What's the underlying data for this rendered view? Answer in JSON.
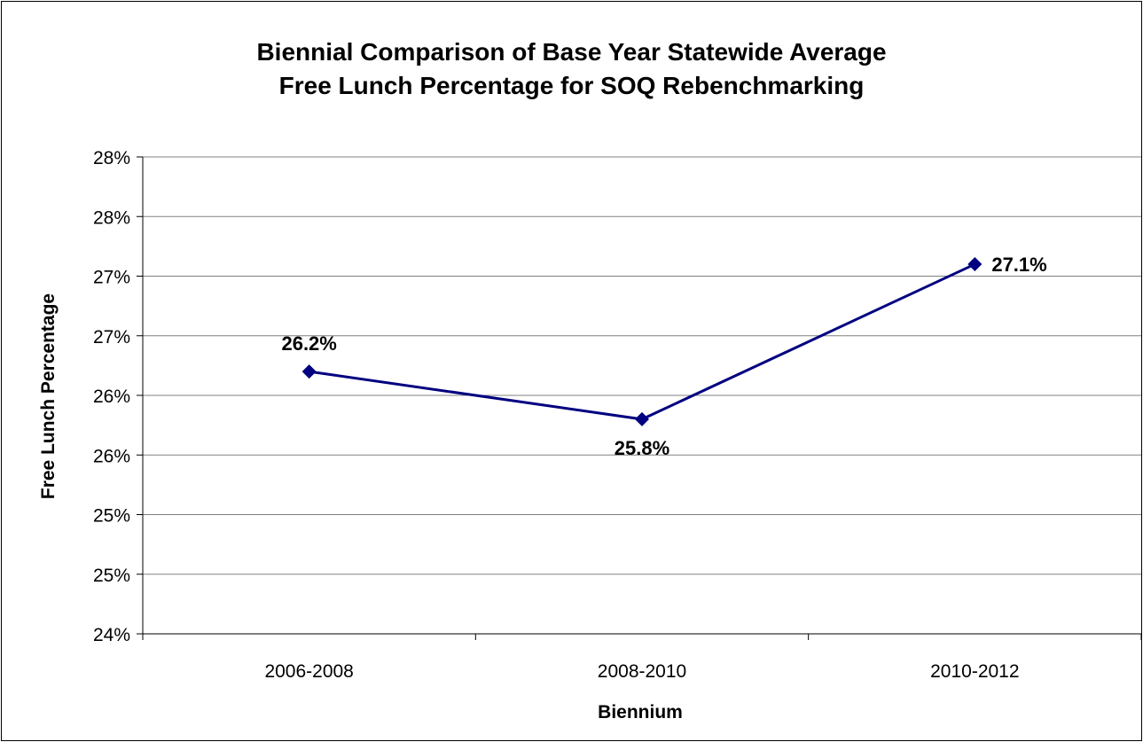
{
  "chart_data": {
    "type": "line",
    "title": [
      "Biennial Comparison of Base Year Statewide Average",
      "Free Lunch Percentage for SOQ Rebenchmarking"
    ],
    "xlabel": "Biennium",
    "ylabel": "Free Lunch Percentage",
    "categories": [
      "2006-2008",
      "2008-2010",
      "2010-2012"
    ],
    "series": [
      {
        "values": [
          26.2,
          25.8,
          27.1
        ],
        "data_labels": [
          "26.2%",
          "25.8%",
          "27.1%"
        ],
        "color": "#000080"
      }
    ],
    "ylim": [
      24,
      28
    ],
    "yticks": [
      24,
      24.5,
      25,
      25.5,
      26,
      26.5,
      27,
      27.5,
      28
    ],
    "ytick_labels": [
      "24%",
      "25%",
      "25%",
      "26%",
      "26%",
      "27%",
      "27%",
      "28%",
      "28%"
    ],
    "grid": true,
    "legend": "none"
  }
}
